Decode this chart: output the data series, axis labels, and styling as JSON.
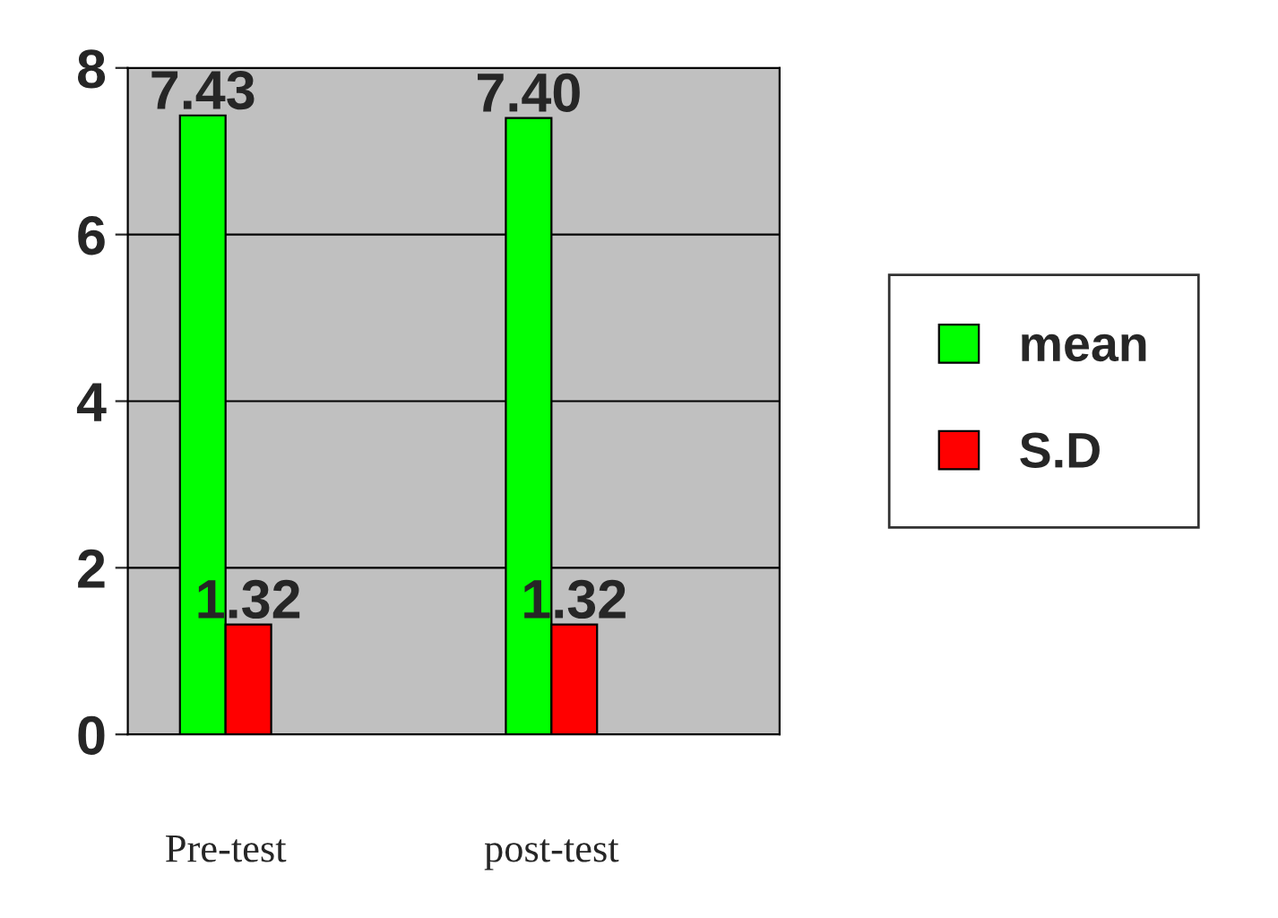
{
  "chart_data": {
    "type": "bar",
    "categories": [
      "Pre-test",
      "post-test"
    ],
    "series": [
      {
        "name": "mean",
        "color": "#00ff00",
        "values": [
          7.43,
          7.4
        ],
        "value_labels": [
          "7.43",
          "7.40"
        ]
      },
      {
        "name": "S.D",
        "color": "#ff0000",
        "values": [
          1.32,
          1.32
        ],
        "value_labels": [
          "1.32",
          "1.32"
        ]
      }
    ],
    "ylim": [
      0,
      8
    ],
    "yticks": [
      0,
      2,
      4,
      6,
      8
    ],
    "grid": "y",
    "legend": "right"
  }
}
